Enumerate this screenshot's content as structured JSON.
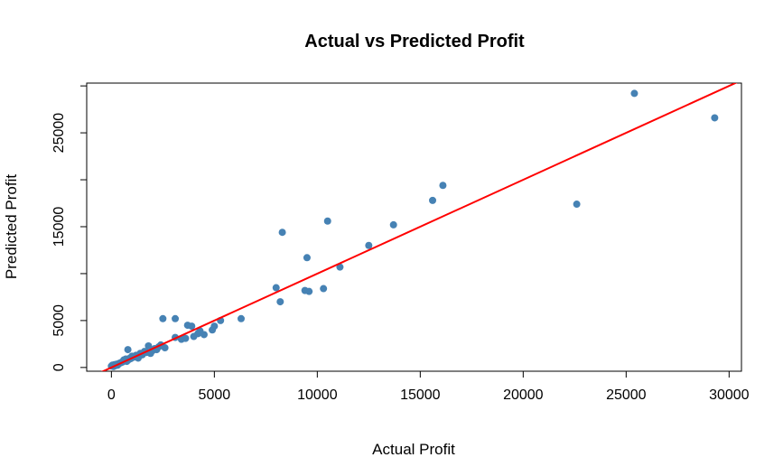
{
  "chart_data": {
    "type": "scatter",
    "title": "Actual vs Predicted Profit",
    "xlabel": "Actual Profit",
    "ylabel": "Predicted Profit",
    "xlim": [
      -1200,
      30600
    ],
    "ylim": [
      -400,
      30300
    ],
    "x_ticks": [
      0,
      5000,
      10000,
      15000,
      20000,
      25000,
      30000
    ],
    "x_tick_labels": [
      "0",
      "5000",
      "10000",
      "15000",
      "20000",
      "25000",
      "30000"
    ],
    "y_ticks": [
      0,
      5000,
      15000,
      25000
    ],
    "y_tick_labels": [
      "0",
      "5000",
      "15000",
      "25000"
    ],
    "y_tick_marks": [
      0,
      5000,
      10000,
      15000,
      20000,
      25000,
      30000
    ],
    "point_color": "#4682b4",
    "line_color": "#ff0000",
    "reference_line": {
      "intercept": 0,
      "slope": 1
    },
    "points": [
      {
        "x": 0,
        "y": 150
      },
      {
        "x": 50,
        "y": 250
      },
      {
        "x": 100,
        "y": 100
      },
      {
        "x": 150,
        "y": 300
      },
      {
        "x": 200,
        "y": 200
      },
      {
        "x": 250,
        "y": 350
      },
      {
        "x": 300,
        "y": 250
      },
      {
        "x": 350,
        "y": 400
      },
      {
        "x": 400,
        "y": 450
      },
      {
        "x": 450,
        "y": 500
      },
      {
        "x": 500,
        "y": 550
      },
      {
        "x": 550,
        "y": 600
      },
      {
        "x": 600,
        "y": 800
      },
      {
        "x": 650,
        "y": 700
      },
      {
        "x": 700,
        "y": 900
      },
      {
        "x": 750,
        "y": 650
      },
      {
        "x": 800,
        "y": 1900
      },
      {
        "x": 850,
        "y": 850
      },
      {
        "x": 900,
        "y": 1000
      },
      {
        "x": 950,
        "y": 950
      },
      {
        "x": 1000,
        "y": 1200
      },
      {
        "x": 1100,
        "y": 1100
      },
      {
        "x": 1200,
        "y": 1300
      },
      {
        "x": 1300,
        "y": 1000
      },
      {
        "x": 1400,
        "y": 1500
      },
      {
        "x": 1500,
        "y": 1350
      },
      {
        "x": 1600,
        "y": 1700
      },
      {
        "x": 1700,
        "y": 1600
      },
      {
        "x": 1800,
        "y": 2300
      },
      {
        "x": 1900,
        "y": 1500
      },
      {
        "x": 2000,
        "y": 1800
      },
      {
        "x": 2100,
        "y": 2000
      },
      {
        "x": 2200,
        "y": 1900
      },
      {
        "x": 2300,
        "y": 2200
      },
      {
        "x": 2400,
        "y": 2400
      },
      {
        "x": 2500,
        "y": 5200
      },
      {
        "x": 2600,
        "y": 2100
      },
      {
        "x": 3100,
        "y": 5200
      },
      {
        "x": 3100,
        "y": 3200
      },
      {
        "x": 3400,
        "y": 3000
      },
      {
        "x": 3600,
        "y": 3100
      },
      {
        "x": 3700,
        "y": 4500
      },
      {
        "x": 3900,
        "y": 4400
      },
      {
        "x": 4000,
        "y": 3300
      },
      {
        "x": 4200,
        "y": 3600
      },
      {
        "x": 4300,
        "y": 3900
      },
      {
        "x": 4500,
        "y": 3500
      },
      {
        "x": 4900,
        "y": 4000
      },
      {
        "x": 5000,
        "y": 4400
      },
      {
        "x": 5300,
        "y": 5000
      },
      {
        "x": 6300,
        "y": 5200
      },
      {
        "x": 8000,
        "y": 8500
      },
      {
        "x": 8200,
        "y": 7000
      },
      {
        "x": 8300,
        "y": 14400
      },
      {
        "x": 9400,
        "y": 8200
      },
      {
        "x": 9500,
        "y": 11700
      },
      {
        "x": 9600,
        "y": 8100
      },
      {
        "x": 10300,
        "y": 8400
      },
      {
        "x": 10500,
        "y": 15600
      },
      {
        "x": 11100,
        "y": 10700
      },
      {
        "x": 12500,
        "y": 13000
      },
      {
        "x": 13700,
        "y": 15200
      },
      {
        "x": 15600,
        "y": 17800
      },
      {
        "x": 16100,
        "y": 19400
      },
      {
        "x": 22600,
        "y": 17400
      },
      {
        "x": 25400,
        "y": 29200
      },
      {
        "x": 29300,
        "y": 26600
      }
    ]
  }
}
